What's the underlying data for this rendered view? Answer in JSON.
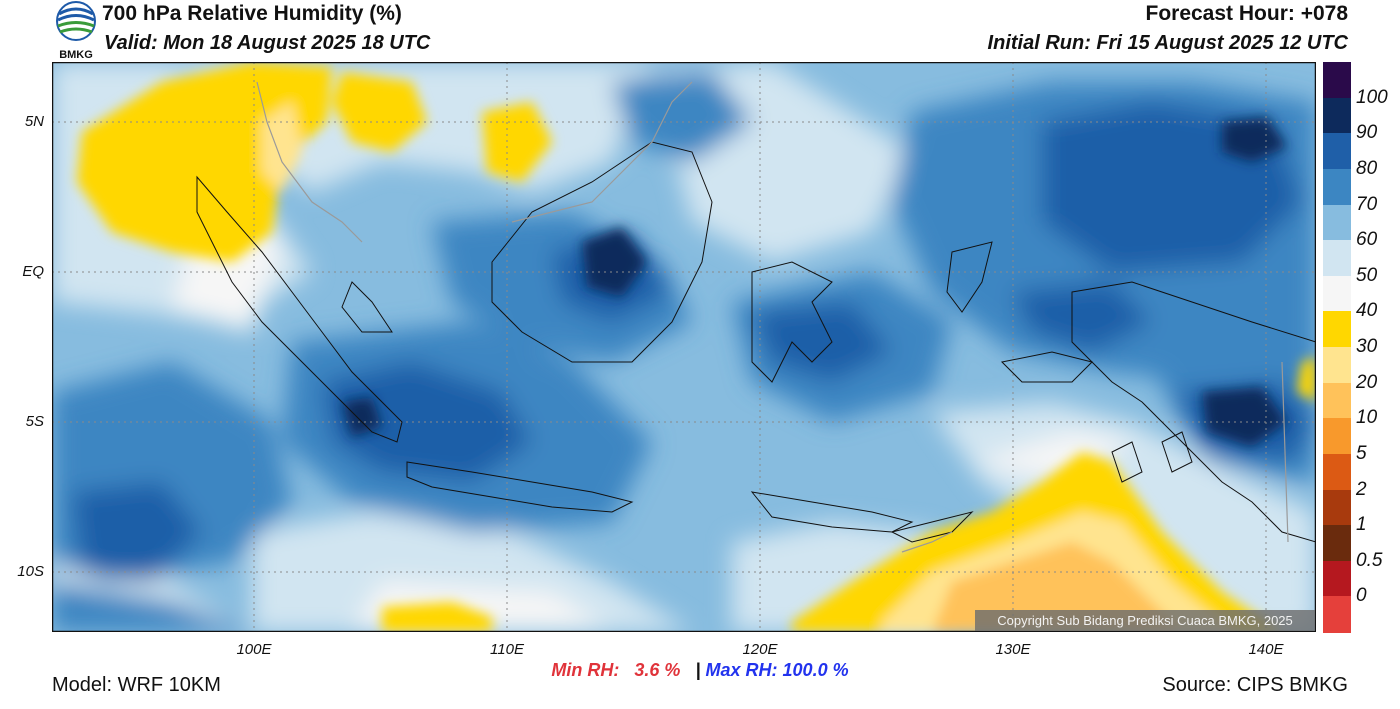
{
  "header": {
    "title": "700 hPa Relative Humidity (%)",
    "valid": "Valid: Mon 18 August 2025 18 UTC",
    "forecast_hour": "Forecast Hour: +078",
    "initial_run": "Initial Run: Fri 15 August 2025 12 UTC",
    "logo_text": "BMKG"
  },
  "map": {
    "lat_labels": [
      "5N",
      "EQ",
      "5S",
      "10S"
    ],
    "lon_labels": [
      "100E",
      "110E",
      "120E",
      "130E",
      "140E"
    ],
    "lon_range": [
      92,
      142
    ],
    "lat_range": [
      -12,
      7
    ],
    "copyright": "Copyright Sub Bidang Prediksi Cuaca BMKG, 2025"
  },
  "colorbar": {
    "labels": [
      "100",
      "90",
      "80",
      "70",
      "60",
      "50",
      "40",
      "30",
      "20",
      "10",
      "5",
      "2",
      "1",
      "0.5",
      "0"
    ],
    "colors": [
      "#2a0a4a",
      "#0d2a5c",
      "#1f5fa8",
      "#3c86c2",
      "#87bcdf",
      "#d1e5f1",
      "#f6f6f6",
      "#ffd700",
      "#ffe48f",
      "#ffc25a",
      "#f8992c",
      "#dc5a14",
      "#a83a0d",
      "#6a2b0d",
      "#b5181f",
      "#e5403b"
    ]
  },
  "stats": {
    "min_label": "Min RH:",
    "min_value": "3.6 %",
    "separator": "|",
    "max_label": "Max RH:",
    "max_value": "100.0 %"
  },
  "footer": {
    "model": "Model: WRF 10KM",
    "source": "Source: CIPS BMKG"
  }
}
